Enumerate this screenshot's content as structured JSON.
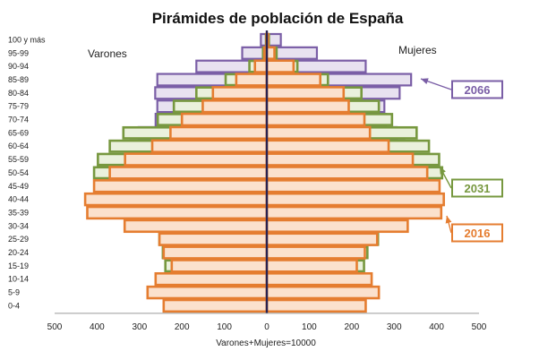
{
  "chart_data": {
    "type": "bar",
    "orientation": "horizontal",
    "subtype": "population-pyramid",
    "title": "Pirámides de población de España",
    "left_label": "Varones",
    "right_label": "Mujeres",
    "xlabel": "Varones+Mujeres=10000",
    "xlim": [
      -500,
      500
    ],
    "x_ticks": [
      -500,
      -400,
      -300,
      -200,
      -100,
      0,
      100,
      200,
      300,
      400,
      500
    ],
    "x_tick_labels": [
      "500",
      "400",
      "300",
      "200",
      "100",
      "0",
      "100",
      "200",
      "300",
      "400",
      "500"
    ],
    "grid": false,
    "legend_placement": "right",
    "categories": [
      "0-4",
      "5-9",
      "10-14",
      "15-19",
      "20-24",
      "25-29",
      "30-34",
      "35-39",
      "40-44",
      "45-49",
      "50-54",
      "55-59",
      "60-64",
      "65-69",
      "70-74",
      "75-79",
      "80-84",
      "85-89",
      "90-94",
      "95-99",
      "100 y más"
    ],
    "series": [
      {
        "name": "2066",
        "color": "#7a5ea6",
        "fill": "#e8e2f0",
        "varones": [
          191,
          199,
          204,
          214,
          232,
          242,
          249,
          254,
          262,
          270,
          303,
          331,
          321,
          302,
          262,
          258,
          263,
          258,
          166,
          58,
          14
        ],
        "mujeres": [
          181,
          187,
          193,
          200,
          225,
          243,
          256,
          262,
          267,
          281,
          306,
          328,
          324,
          306,
          281,
          277,
          313,
          340,
          233,
          118,
          33
        ]
      },
      {
        "name": "2031",
        "color": "#77983f",
        "fill": "#eaf1dc",
        "varones": [
          185,
          195,
          220,
          239,
          245,
          253,
          258,
          278,
          286,
          325,
          407,
          398,
          370,
          338,
          257,
          219,
          166,
          97,
          41,
          9,
          2
        ],
        "mujeres": [
          175,
          185,
          210,
          229,
          237,
          262,
          275,
          284,
          282,
          341,
          413,
          406,
          382,
          353,
          295,
          264,
          223,
          144,
          72,
          23,
          5
        ]
      },
      {
        "name": "2016",
        "color": "#e57d30",
        "fill": "#fbe1cd",
        "varones": [
          243,
          281,
          262,
          224,
          243,
          253,
          335,
          423,
          428,
          407,
          370,
          334,
          270,
          227,
          200,
          151,
          127,
          72,
          28,
          6,
          1
        ],
        "mujeres": [
          233,
          264,
          247,
          212,
          231,
          260,
          332,
          411,
          417,
          407,
          378,
          344,
          287,
          243,
          230,
          193,
          181,
          126,
          63,
          18,
          3
        ]
      }
    ]
  }
}
